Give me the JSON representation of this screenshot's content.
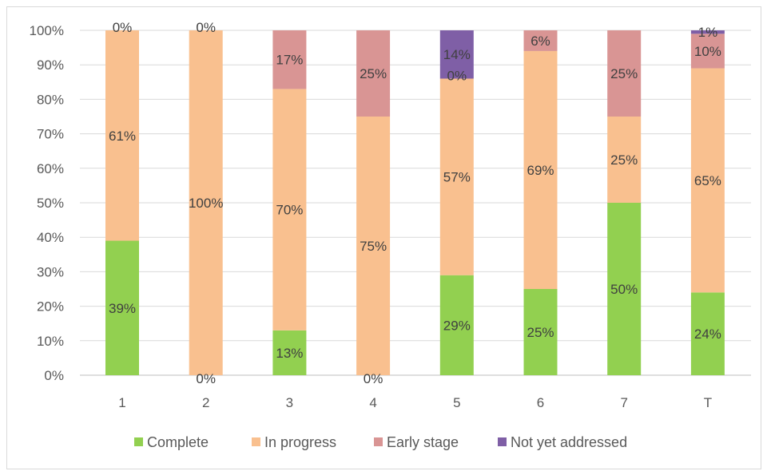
{
  "chart_data": {
    "type": "bar",
    "stacked": true,
    "percent": true,
    "categories": [
      "1",
      "2",
      "3",
      "4",
      "5",
      "6",
      "7",
      "T"
    ],
    "series": [
      {
        "name": "Complete",
        "color": "#92d050",
        "values": [
          39,
          0,
          13,
          0,
          29,
          25,
          50,
          24
        ]
      },
      {
        "name": "In progress",
        "color": "#f9c08f",
        "values": [
          61,
          100,
          70,
          75,
          57,
          69,
          25,
          65
        ]
      },
      {
        "name": "Early stage",
        "color": "#d99594",
        "values": [
          0,
          0,
          17,
          25,
          0,
          6,
          25,
          10
        ]
      },
      {
        "name": "Not yet addressed",
        "color": "#7f5fa6",
        "values": [
          0,
          0,
          0,
          0,
          14,
          0,
          0,
          1
        ]
      }
    ],
    "data_labels": [
      {
        "category": "1",
        "texts": [
          "39%",
          "61%",
          "0%"
        ]
      },
      {
        "category": "2",
        "texts": [
          "0%",
          "100%",
          "0%"
        ]
      },
      {
        "category": "3",
        "texts": [
          "13%",
          "70%",
          "17%"
        ]
      },
      {
        "category": "4",
        "texts": [
          "0%",
          "75%",
          "25%"
        ]
      },
      {
        "category": "5",
        "texts": [
          "29%",
          "57%",
          "0%",
          "14%"
        ]
      },
      {
        "category": "6",
        "texts": [
          "25%",
          "69%",
          "6%"
        ]
      },
      {
        "category": "7",
        "texts": [
          "50%",
          "25%",
          "25%"
        ]
      },
      {
        "category": "T",
        "texts": [
          "24%",
          "65%",
          "10%",
          "1%"
        ]
      }
    ],
    "y_ticks": [
      "0%",
      "10%",
      "20%",
      "30%",
      "40%",
      "50%",
      "60%",
      "70%",
      "80%",
      "90%",
      "100%"
    ],
    "ylim": [
      0,
      100
    ],
    "grid": true,
    "legend_position": "bottom",
    "title": "",
    "xlabel": "",
    "ylabel": ""
  }
}
